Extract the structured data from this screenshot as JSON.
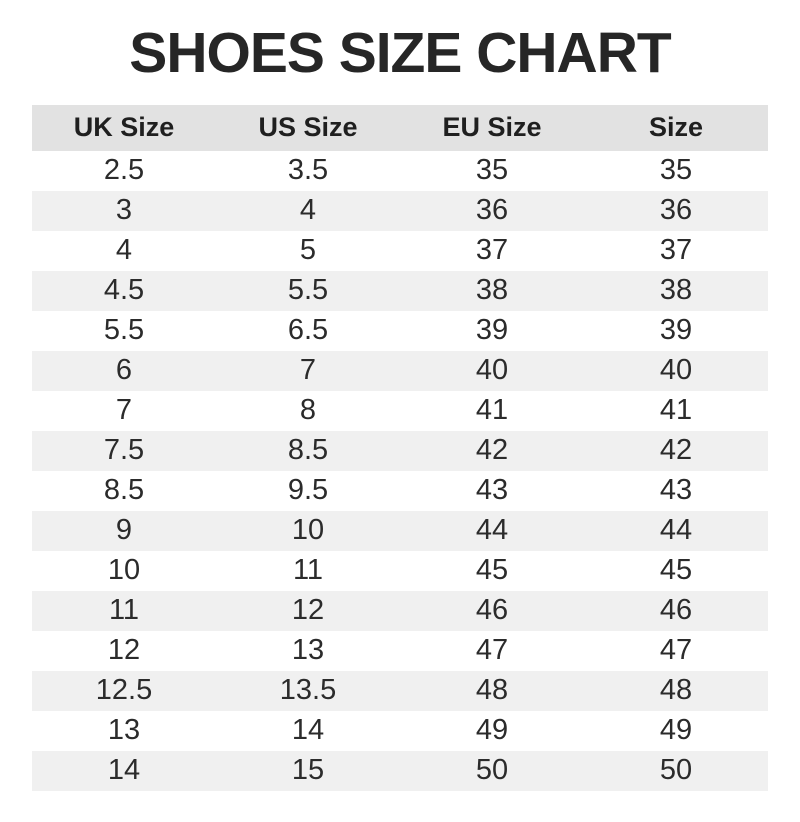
{
  "title": "SHOES SIZE CHART",
  "colors": {
    "background": "#ffffff",
    "title_text": "#262626",
    "header_bg": "#e2e2e2",
    "stripe_bg": "#f0f0f0",
    "cell_text": "#2b2b2b"
  },
  "chart_data": {
    "type": "table",
    "title": "SHOES SIZE CHART",
    "columns": [
      "UK Size",
      "US Size",
      "EU Size",
      "Size"
    ],
    "rows": [
      [
        "2.5",
        "3.5",
        "35",
        "35"
      ],
      [
        "3",
        "4",
        "36",
        "36"
      ],
      [
        "4",
        "5",
        "37",
        "37"
      ],
      [
        "4.5",
        "5.5",
        "38",
        "38"
      ],
      [
        "5.5",
        "6.5",
        "39",
        "39"
      ],
      [
        "6",
        "7",
        "40",
        "40"
      ],
      [
        "7",
        "8",
        "41",
        "41"
      ],
      [
        "7.5",
        "8.5",
        "42",
        "42"
      ],
      [
        "8.5",
        "9.5",
        "43",
        "43"
      ],
      [
        "9",
        "10",
        "44",
        "44"
      ],
      [
        "10",
        "11",
        "45",
        "45"
      ],
      [
        "11",
        "12",
        "46",
        "46"
      ],
      [
        "12",
        "13",
        "47",
        "47"
      ],
      [
        "12.5",
        "13.5",
        "48",
        "48"
      ],
      [
        "13",
        "14",
        "49",
        "49"
      ],
      [
        "14",
        "15",
        "50",
        "50"
      ]
    ],
    "layout": {
      "stripe_pattern": "first row white, alternating light gray",
      "header_background": "gray",
      "alignment": "center"
    }
  }
}
